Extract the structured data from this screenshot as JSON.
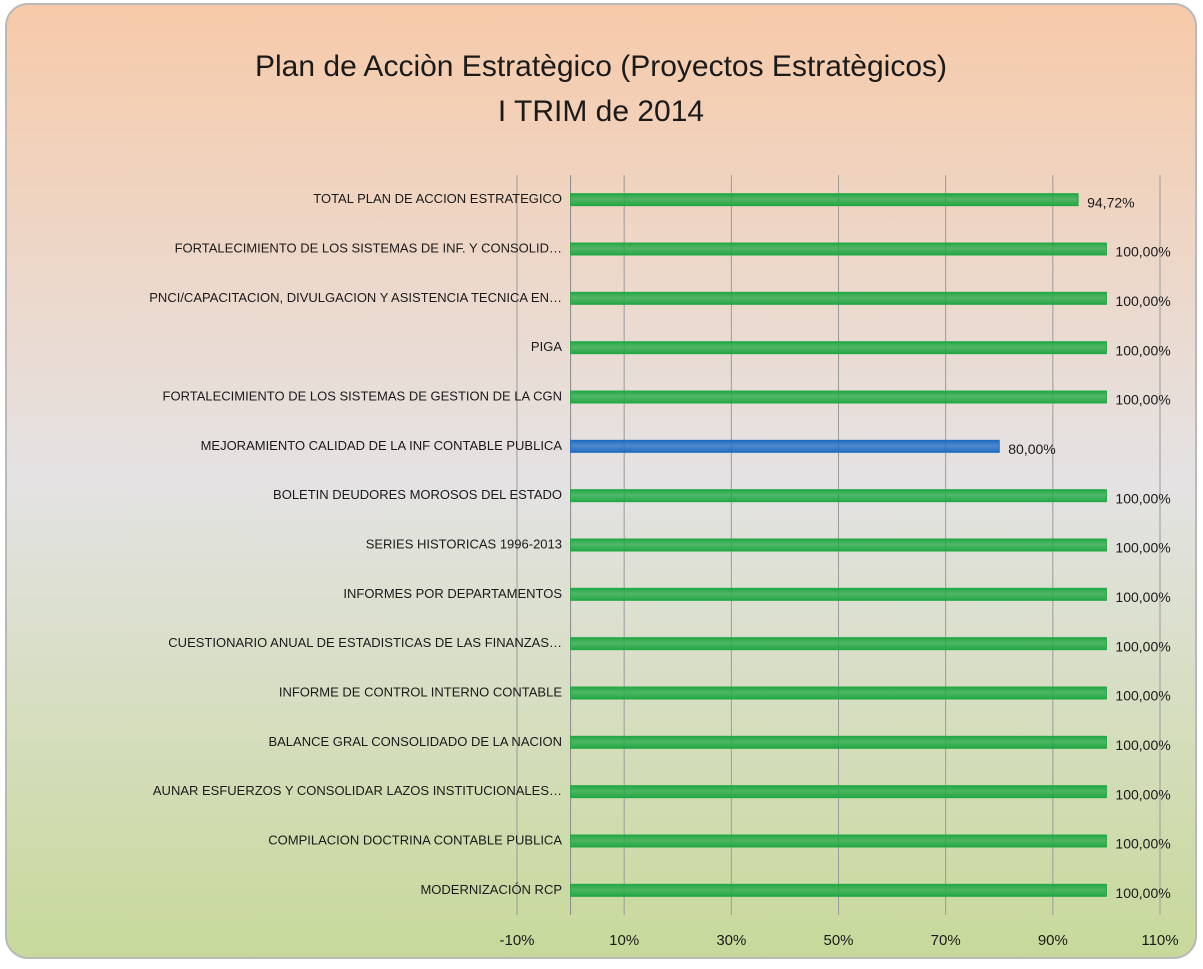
{
  "chart_data": {
    "type": "bar",
    "orientation": "horizontal",
    "title": "Plan de Acciòn Estratègico (Proyectos Estratègicos)",
    "subtitle": "I TRIM de 2014",
    "categories": [
      "TOTAL PLAN DE ACCION ESTRATEGICO",
      "FORTALECIMIENTO DE LOS SISTEMAS DE INF. Y CONSOLID…",
      "PNCI/CAPACITACION, DIVULGACION Y ASISTENCIA TECNICA EN…",
      "PIGA",
      "FORTALECIMIENTO DE LOS SISTEMAS DE GESTION DE LA CGN",
      "MEJORAMIENTO CALIDAD DE LA INF CONTABLE PUBLICA",
      "BOLETIN DEUDORES MOROSOS DEL ESTADO",
      "SERIES HISTORICAS 1996-2013",
      "INFORMES POR DEPARTAMENTOS",
      "CUESTIONARIO ANUAL DE ESTADISTICAS DE LAS FINANZAS…",
      "INFORME DE CONTROL INTERNO CONTABLE",
      "BALANCE GRAL CONSOLIDADO DE LA NACION",
      "AUNAR ESFUERZOS Y CONSOLIDAR LAZOS INSTITUCIONALES…",
      "COMPILACION DOCTRINA CONTABLE PUBLICA",
      "MODERNIZACIÓN RCP"
    ],
    "values": [
      94.72,
      100,
      100,
      100,
      100,
      80,
      100,
      100,
      100,
      100,
      100,
      100,
      100,
      100,
      100
    ],
    "value_labels": [
      "94,72%",
      "100,00%",
      "100,00%",
      "100,00%",
      "100,00%",
      "80,00%",
      "100,00%",
      "100,00%",
      "100,00%",
      "100,00%",
      "100,00%",
      "100,00%",
      "100,00%",
      "100,00%",
      "100,00%"
    ],
    "colors": [
      "#22a845",
      "#22a845",
      "#22a845",
      "#22a845",
      "#22a845",
      "#1f6cc4",
      "#22a845",
      "#22a845",
      "#22a845",
      "#22a845",
      "#22a845",
      "#22a845",
      "#22a845",
      "#22a845",
      "#22a845"
    ],
    "xlim": [
      -10,
      110
    ],
    "xticks": [
      {
        "value": -10,
        "label": "-10%"
      },
      {
        "value": 10,
        "label": "10%"
      },
      {
        "value": 30,
        "label": "30%"
      },
      {
        "value": 50,
        "label": "50%"
      },
      {
        "value": 70,
        "label": "70%"
      },
      {
        "value": 90,
        "label": "90%"
      },
      {
        "value": 110,
        "label": "110%"
      }
    ],
    "grid": true
  }
}
